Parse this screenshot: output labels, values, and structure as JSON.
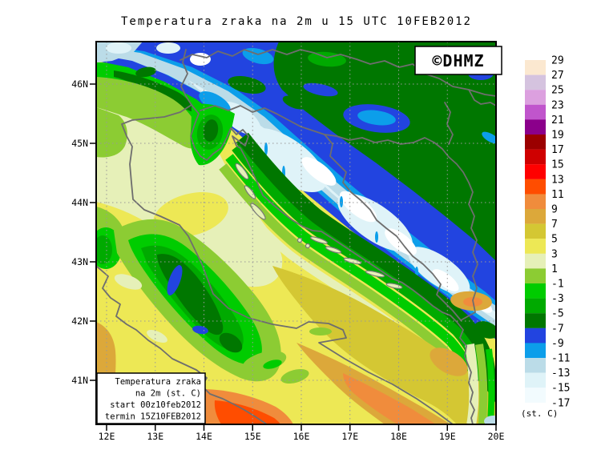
{
  "title": "Temperatura zraka na 2m u 15 UTC 10FEB2012",
  "logo": {
    "text": "©DHMZ",
    "color": "#2233CC"
  },
  "info_box": {
    "lines": [
      "Temperatura zraka",
      "na 2m (st. C)",
      "start 00z10feb2012",
      "termin 15Z10FEB2012"
    ]
  },
  "axes": {
    "x_labels": [
      "12E",
      "13E",
      "14E",
      "15E",
      "16E",
      "17E",
      "18E",
      "19E",
      "20E"
    ],
    "y_labels": [
      "46N",
      "45N",
      "44N",
      "43N",
      "42N",
      "41N"
    ]
  },
  "legend": {
    "labels": [
      "29",
      "27",
      "25",
      "23",
      "21",
      "19",
      "17",
      "15",
      "13",
      "11",
      "9",
      "7",
      "5",
      "3",
      "1",
      "-1",
      "-3",
      "-5",
      "-7",
      "-9",
      "-11",
      "-13",
      "-15",
      "-17"
    ],
    "unit": "(st. C)",
    "colors": [
      "#FBE8D0",
      "#D5C3DF",
      "#DCA0DF",
      "#C055CC",
      "#8B008B",
      "#9B0000",
      "#CF0000",
      "#FF0000",
      "#FF4D00",
      "#F08C3C",
      "#DCA83A",
      "#D4C733",
      "#EDE855",
      "#E6F0B8",
      "#8CCC33",
      "#00CC00",
      "#00AA00",
      "#007700",
      "#2244E0",
      "#0C9EEA",
      "#BBDCE8",
      "#DFF3F8",
      "#F2FBFE"
    ]
  },
  "map": {
    "white": "#FFFFFF",
    "coastline_color": "#6E6E6E",
    "grid_color": "#999999"
  }
}
